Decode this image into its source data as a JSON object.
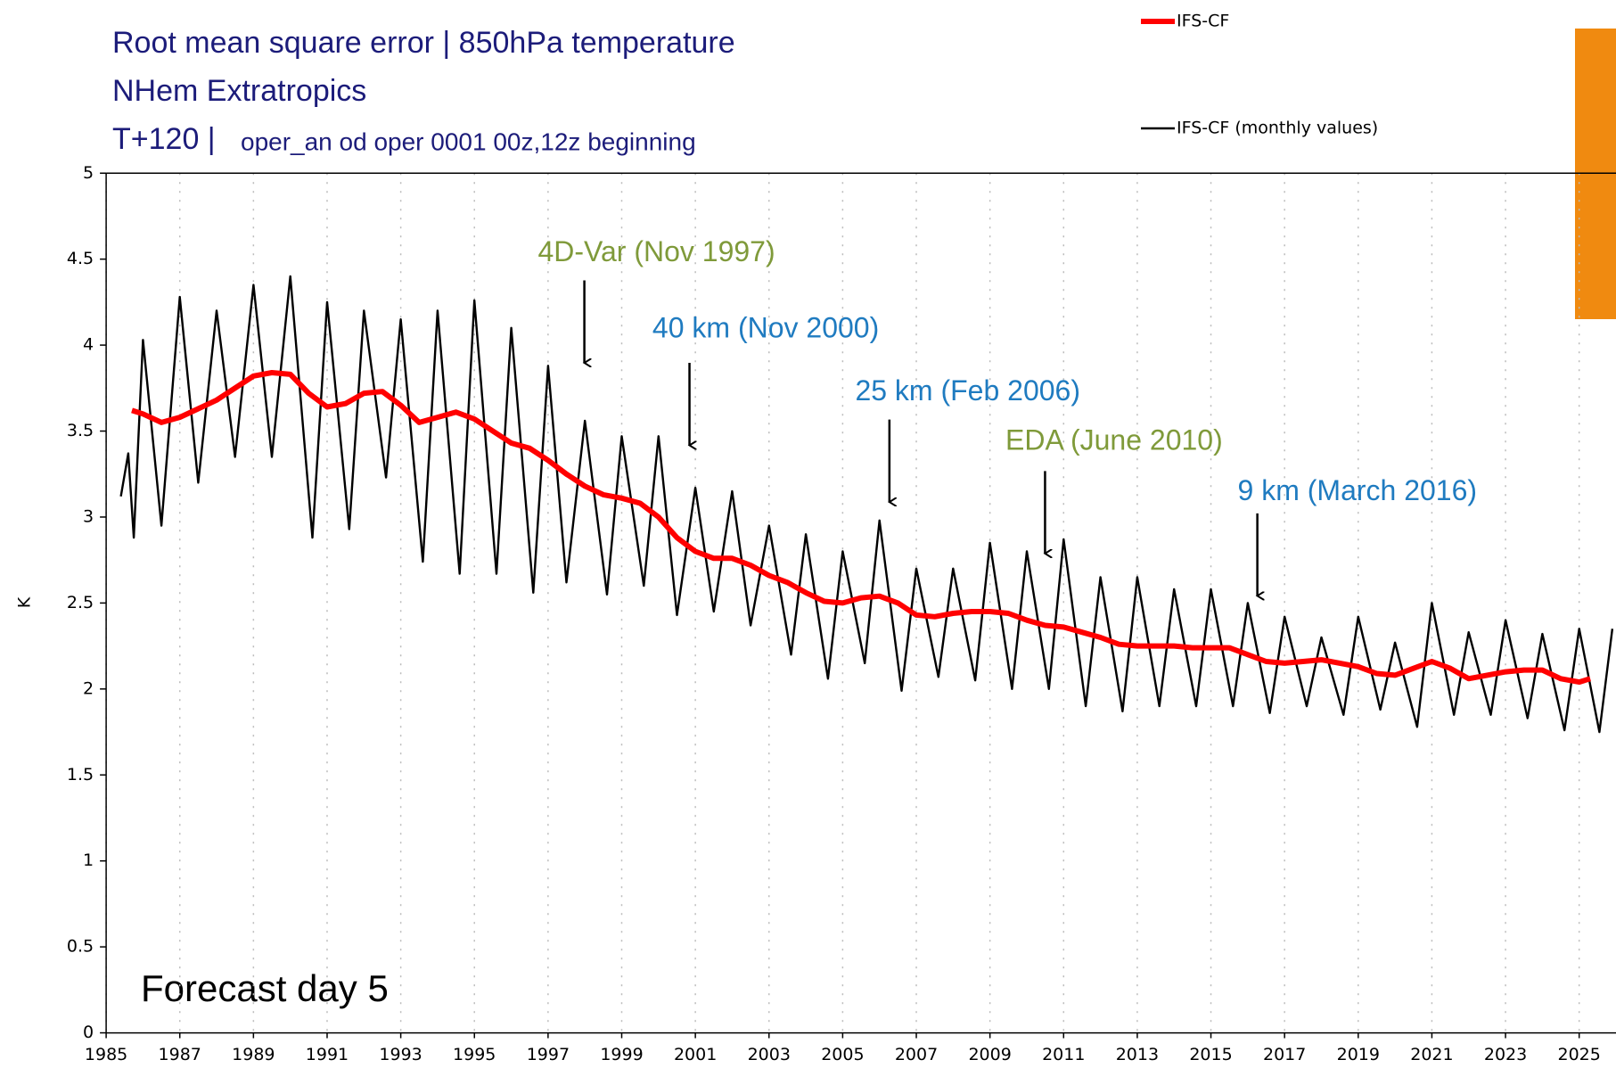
{
  "chart_data": {
    "type": "line",
    "title": "Root mean square error | 850hPa temperature",
    "subtitle": "NHem Extratropics",
    "forecast_step": "T+120 |",
    "experiment": "oper_an od oper 0001 00z,12z beginning",
    "ylabel": "K",
    "inset_label": "Forecast day 5",
    "xlim": [
      1985,
      2026
    ],
    "ylim": [
      0,
      5
    ],
    "xticks": [
      1985,
      1987,
      1989,
      1991,
      1993,
      1995,
      1997,
      1999,
      2001,
      2003,
      2005,
      2007,
      2009,
      2011,
      2013,
      2015,
      2017,
      2019,
      2021,
      2023,
      2025
    ],
    "yticks": [
      0,
      0.5,
      1,
      1.5,
      2,
      2.5,
      3,
      3.5,
      4,
      4.5,
      5
    ],
    "grid": true,
    "series": [
      {
        "name": "IFS-CF (monthly values)",
        "color": "#000000",
        "x": [
          1985.4,
          1985.6,
          1985.75,
          1986.0,
          1986.5,
          1987.0,
          1987.5,
          1988.0,
          1988.5,
          1989.0,
          1989.5,
          1990.0,
          1990.6,
          1991.0,
          1991.6,
          1992.0,
          1992.6,
          1993.0,
          1993.6,
          1994.0,
          1994.6,
          1995.0,
          1995.6,
          1996.0,
          1996.6,
          1997.0,
          1997.5,
          1998.0,
          1998.6,
          1999.0,
          1999.6,
          2000.0,
          2000.5,
          2001.0,
          2001.5,
          2002.0,
          2002.5,
          2003.0,
          2003.6,
          2004.0,
          2004.6,
          2005.0,
          2005.6,
          2006.0,
          2006.6,
          2007.0,
          2007.6,
          2008.0,
          2008.6,
          2009.0,
          2009.6,
          2010.0,
          2010.6,
          2011.0,
          2011.6,
          2012.0,
          2012.6,
          2013.0,
          2013.6,
          2014.0,
          2014.6,
          2015.0,
          2015.6,
          2016.0,
          2016.6,
          2017.0,
          2017.6,
          2018.0,
          2018.6,
          2019.0,
          2019.6,
          2020.0,
          2020.6,
          2021.0,
          2021.6,
          2022.0,
          2022.6,
          2023.0,
          2023.6,
          2024.0,
          2024.6,
          2025.0,
          2025.55,
          2025.9
        ],
        "values": [
          3.12,
          3.37,
          2.88,
          4.03,
          2.95,
          4.28,
          3.2,
          4.2,
          3.35,
          4.35,
          3.35,
          4.4,
          2.88,
          4.25,
          2.93,
          4.2,
          3.23,
          4.15,
          2.74,
          4.2,
          2.67,
          4.26,
          2.67,
          4.1,
          2.56,
          3.88,
          2.62,
          3.56,
          2.55,
          3.47,
          2.6,
          3.47,
          2.43,
          3.17,
          2.45,
          3.15,
          2.37,
          2.95,
          2.2,
          2.9,
          2.06,
          2.8,
          2.15,
          2.98,
          1.99,
          2.7,
          2.07,
          2.7,
          2.05,
          2.85,
          2.0,
          2.8,
          2.0,
          2.87,
          1.9,
          2.65,
          1.87,
          2.65,
          1.9,
          2.58,
          1.9,
          2.58,
          1.9,
          2.5,
          1.86,
          2.42,
          1.9,
          2.3,
          1.85,
          2.42,
          1.88,
          2.27,
          1.78,
          2.5,
          1.85,
          2.33,
          1.85,
          2.4,
          1.83,
          2.32,
          1.76,
          2.35,
          1.75,
          2.35
        ]
      },
      {
        "name": "IFS-CF",
        "color": "#ff0000",
        "x": [
          1985.7,
          1986.0,
          1986.5,
          1987.0,
          1987.5,
          1988.0,
          1988.5,
          1989.0,
          1989.5,
          1990.0,
          1990.5,
          1991.0,
          1991.5,
          1992.0,
          1992.5,
          1993.0,
          1993.5,
          1994.0,
          1994.5,
          1995.0,
          1995.5,
          1996.0,
          1996.5,
          1997.0,
          1997.5,
          1998.0,
          1998.5,
          1999.0,
          1999.5,
          2000.0,
          2000.5,
          2001.0,
          2001.5,
          2002.0,
          2002.5,
          2003.0,
          2003.5,
          2004.0,
          2004.5,
          2005.0,
          2005.5,
          2006.0,
          2006.5,
          2007.0,
          2007.5,
          2008.0,
          2008.5,
          2009.0,
          2009.5,
          2010.0,
          2010.5,
          2011.0,
          2011.5,
          2012.0,
          2012.5,
          2013.0,
          2013.5,
          2014.0,
          2014.5,
          2015.0,
          2015.5,
          2016.0,
          2016.5,
          2017.0,
          2017.5,
          2018.0,
          2018.5,
          2019.0,
          2019.5,
          2020.0,
          2020.5,
          2021.0,
          2021.5,
          2022.0,
          2022.5,
          2023.0,
          2023.5,
          2024.0,
          2024.5,
          2025.0,
          2025.3
        ],
        "values": [
          3.62,
          3.6,
          3.55,
          3.58,
          3.63,
          3.68,
          3.75,
          3.82,
          3.84,
          3.83,
          3.72,
          3.64,
          3.66,
          3.72,
          3.73,
          3.65,
          3.55,
          3.58,
          3.61,
          3.57,
          3.5,
          3.43,
          3.4,
          3.33,
          3.25,
          3.18,
          3.13,
          3.11,
          3.08,
          3.0,
          2.88,
          2.8,
          2.76,
          2.76,
          2.72,
          2.66,
          2.62,
          2.56,
          2.51,
          2.5,
          2.53,
          2.54,
          2.5,
          2.43,
          2.42,
          2.44,
          2.45,
          2.45,
          2.44,
          2.4,
          2.37,
          2.36,
          2.33,
          2.3,
          2.26,
          2.25,
          2.25,
          2.25,
          2.24,
          2.24,
          2.24,
          2.2,
          2.16,
          2.15,
          2.16,
          2.17,
          2.15,
          2.13,
          2.09,
          2.08,
          2.12,
          2.16,
          2.12,
          2.06,
          2.08,
          2.1,
          2.11,
          2.11,
          2.06,
          2.04,
          2.06
        ]
      }
    ],
    "annotations": [
      {
        "text": "4D-Var (Nov 1997)",
        "color": "#7f9a3a"
      },
      {
        "text": "40 km (Nov 2000)",
        "color": "#1f7bc0"
      },
      {
        "text": "25 km (Feb 2006)",
        "color": "#1f7bc0"
      },
      {
        "text": "EDA (June 2010)",
        "color": "#7f9a3a"
      },
      {
        "text": "9 km (March 2016)",
        "color": "#1f7bc0"
      }
    ]
  }
}
